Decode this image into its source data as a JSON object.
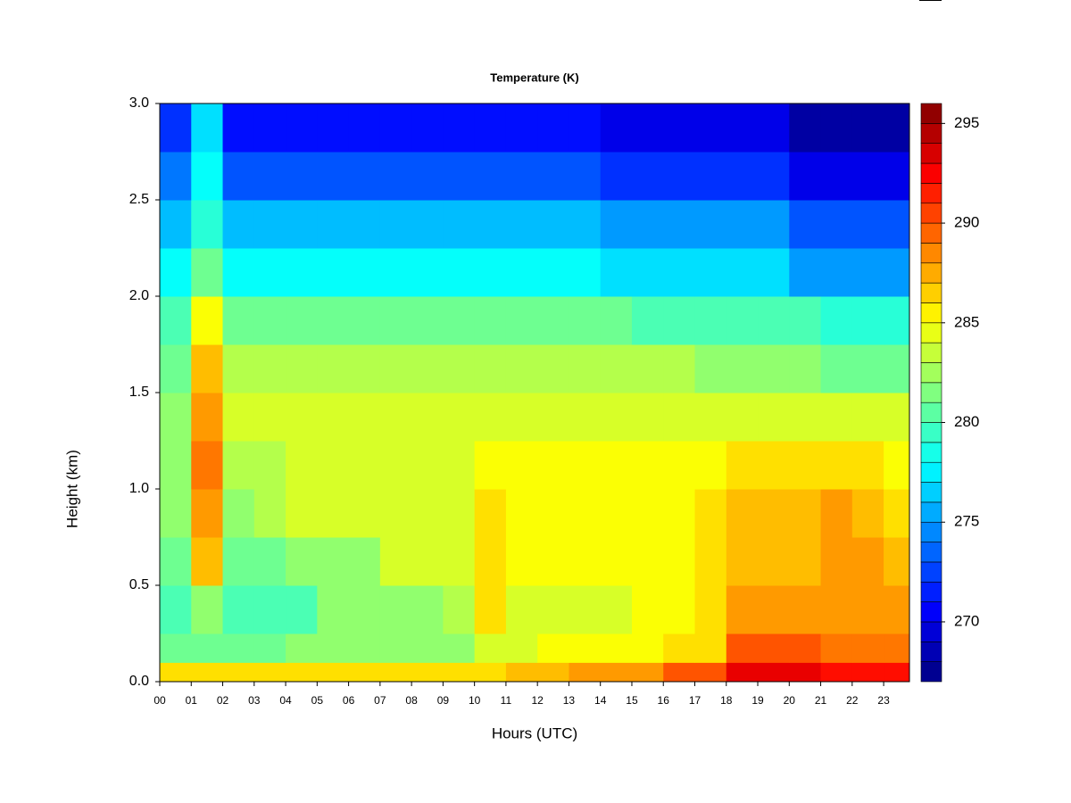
{
  "chart_data": {
    "type": "heatmap",
    "title": "Temperature (K)",
    "x_label": "Hours (UTC)",
    "y_label": "Height (km)",
    "colormap": "jet",
    "xlim": [
      0,
      23.82
    ],
    "ylim": [
      0,
      3
    ],
    "xticks": [
      {
        "value": 0,
        "label": "00"
      },
      {
        "value": 1,
        "label": "01"
      },
      {
        "value": 2,
        "label": "02"
      },
      {
        "value": 3,
        "label": "03"
      },
      {
        "value": 4,
        "label": "04"
      },
      {
        "value": 5,
        "label": "05"
      },
      {
        "value": 6,
        "label": "06"
      },
      {
        "value": 7,
        "label": "07"
      },
      {
        "value": 8,
        "label": "08"
      },
      {
        "value": 9,
        "label": "09"
      },
      10,
      11,
      12,
      13,
      14,
      15,
      16,
      17,
      18,
      19,
      20,
      21,
      22,
      23
    ],
    "yticks": [
      {
        "value": 0,
        "label": "0.0"
      },
      0.5,
      {
        "value": 1,
        "label": "1.0"
      },
      1.5,
      {
        "value": 2,
        "label": "2.0"
      },
      2.5,
      {
        "value": 3,
        "label": "3.0"
      }
    ],
    "zlim": [
      267,
      296
    ],
    "zticks": [
      270,
      275,
      280,
      285,
      290,
      295
    ],
    "x_bins": [
      0,
      1,
      2,
      3,
      4,
      5,
      6,
      7,
      8,
      9,
      10,
      11,
      12,
      13,
      14,
      15,
      16,
      17,
      18,
      19,
      20,
      21,
      22,
      23,
      23.82
    ],
    "y_bins": [
      0,
      0.1,
      0.25,
      0.5,
      0.75,
      1.0,
      1.25,
      1.5,
      1.75,
      2.0,
      2.25,
      2.5,
      2.75,
      3.0
    ],
    "z": [
      [
        286,
        286,
        286,
        286,
        286,
        286,
        286,
        286,
        286,
        286,
        286,
        287,
        287,
        288,
        288,
        288,
        290,
        290,
        293,
        293,
        293,
        292,
        292,
        292
      ],
      [
        281,
        281,
        281,
        281,
        282,
        282,
        282,
        282,
        282,
        282,
        284,
        284,
        285,
        285,
        285,
        285,
        286,
        286,
        290,
        290,
        290,
        289,
        289,
        289
      ],
      [
        280,
        282,
        280,
        280,
        280,
        282,
        282,
        282,
        282,
        283,
        286,
        284,
        284,
        284,
        284,
        285,
        285,
        286,
        288,
        288,
        288,
        288,
        288,
        288
      ],
      [
        281,
        287,
        281,
        281,
        282,
        282,
        282,
        284,
        284,
        284,
        286,
        285,
        285,
        285,
        285,
        285,
        285,
        286,
        287,
        287,
        287,
        288,
        288,
        287
      ],
      [
        282,
        288,
        282,
        283,
        284,
        284,
        284,
        284,
        284,
        284,
        286,
        285,
        285,
        285,
        285,
        285,
        285,
        286,
        287,
        287,
        287,
        288,
        287,
        286
      ],
      [
        282,
        289,
        283,
        283,
        284,
        284,
        284,
        284,
        284,
        284,
        285,
        285,
        285,
        285,
        285,
        285,
        285,
        285,
        286,
        286,
        286,
        286,
        286,
        285
      ],
      [
        282,
        288,
        284,
        284,
        284,
        284,
        284,
        284,
        284,
        284,
        284,
        284,
        284,
        284,
        284,
        284,
        284,
        284,
        284,
        284,
        284,
        284,
        284,
        284
      ],
      [
        281,
        287,
        283,
        283,
        283,
        283,
        283,
        283,
        283,
        283,
        283,
        283,
        283,
        283,
        283,
        283,
        283,
        282,
        282,
        282,
        282,
        281,
        281,
        281
      ],
      [
        280,
        285,
        281,
        281,
        281,
        281,
        281,
        281,
        281,
        281,
        281,
        281,
        281,
        281,
        281,
        280,
        280,
        280,
        280,
        280,
        280,
        279,
        279,
        279
      ],
      [
        278,
        281,
        278,
        278,
        278,
        278,
        278,
        278,
        278,
        278,
        278,
        278,
        278,
        278,
        277,
        277,
        277,
        277,
        277,
        277,
        275,
        275,
        275,
        275
      ],
      [
        276,
        279,
        276,
        276,
        276,
        276,
        276,
        276,
        276,
        276,
        276,
        276,
        276,
        276,
        275,
        275,
        275,
        275,
        275,
        275,
        273,
        273,
        273,
        273
      ],
      [
        274,
        278,
        273,
        273,
        273,
        273,
        273,
        273,
        273,
        273,
        273,
        273,
        273,
        273,
        272,
        272,
        272,
        272,
        272,
        272,
        270,
        270,
        270,
        270
      ],
      [
        272,
        277,
        271,
        271,
        271,
        271,
        271,
        271,
        271,
        271,
        271,
        271,
        271,
        271,
        270,
        270,
        270,
        270,
        270,
        270,
        268,
        268,
        268,
        268
      ]
    ]
  }
}
